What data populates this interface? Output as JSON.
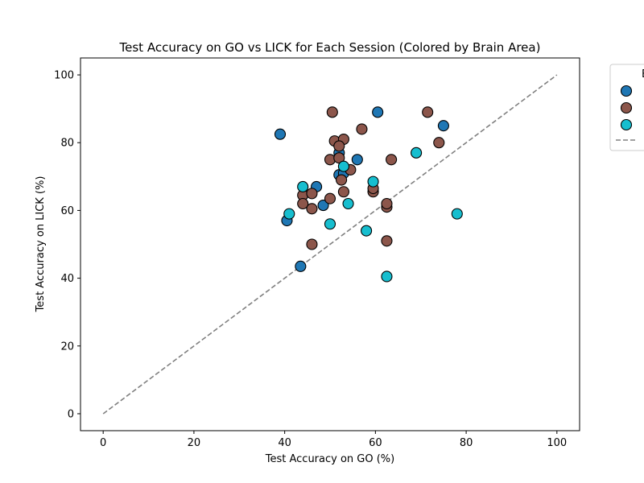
{
  "chart_data": {
    "type": "scatter",
    "title": "Test Accuracy on GO vs LICK for Each Session (Colored by Brain Area)",
    "xlabel": "Test Accuracy on GO (%)",
    "ylabel": "Test Accuracy on LICK (%)",
    "xlim": [
      -5,
      105
    ],
    "ylim": [
      -5,
      105
    ],
    "xticks": [
      0,
      20,
      40,
      60,
      80,
      100
    ],
    "yticks": [
      0,
      20,
      40,
      60,
      80,
      100
    ],
    "grid": false,
    "legend_position": "outside-right",
    "legend_title_visible": "B",
    "reference_line": {
      "style": "dashed",
      "color": "#808080",
      "from": [
        0,
        0
      ],
      "to": [
        100,
        100
      ]
    },
    "series": [
      {
        "color": "#1f77b4",
        "points": [
          {
            "x": 39,
            "y": 82.5
          },
          {
            "x": 60.5,
            "y": 89
          },
          {
            "x": 75,
            "y": 85
          },
          {
            "x": 52,
            "y": 77
          },
          {
            "x": 56,
            "y": 75
          },
          {
            "x": 52,
            "y": 70.5
          },
          {
            "x": 47,
            "y": 67
          },
          {
            "x": 48.5,
            "y": 61.5
          },
          {
            "x": 40.5,
            "y": 57
          },
          {
            "x": 43.5,
            "y": 43.5
          },
          {
            "x": 53,
            "y": 71
          }
        ]
      },
      {
        "color": "#8c564b",
        "points": [
          {
            "x": 50.5,
            "y": 89
          },
          {
            "x": 71.5,
            "y": 89
          },
          {
            "x": 57,
            "y": 84
          },
          {
            "x": 51,
            "y": 80.5
          },
          {
            "x": 53,
            "y": 81
          },
          {
            "x": 52,
            "y": 79
          },
          {
            "x": 74,
            "y": 80
          },
          {
            "x": 50,
            "y": 75
          },
          {
            "x": 52,
            "y": 75.5
          },
          {
            "x": 63.5,
            "y": 75
          },
          {
            "x": 54.5,
            "y": 72
          },
          {
            "x": 52.5,
            "y": 69
          },
          {
            "x": 53,
            "y": 65.5
          },
          {
            "x": 59.5,
            "y": 65.5
          },
          {
            "x": 59.5,
            "y": 66.5
          },
          {
            "x": 44,
            "y": 64.5
          },
          {
            "x": 46,
            "y": 65
          },
          {
            "x": 44,
            "y": 62
          },
          {
            "x": 50,
            "y": 63.5
          },
          {
            "x": 46,
            "y": 60.5
          },
          {
            "x": 62.5,
            "y": 61
          },
          {
            "x": 62.5,
            "y": 62
          },
          {
            "x": 46,
            "y": 50
          },
          {
            "x": 62.5,
            "y": 51
          }
        ]
      },
      {
        "color": "#17becf",
        "points": [
          {
            "x": 53,
            "y": 73
          },
          {
            "x": 69,
            "y": 77
          },
          {
            "x": 44,
            "y": 67
          },
          {
            "x": 59.5,
            "y": 68.5
          },
          {
            "x": 54,
            "y": 62
          },
          {
            "x": 41,
            "y": 59
          },
          {
            "x": 78,
            "y": 59
          },
          {
            "x": 50,
            "y": 56
          },
          {
            "x": 58,
            "y": 54
          },
          {
            "x": 62.5,
            "y": 40.5
          }
        ]
      }
    ]
  }
}
